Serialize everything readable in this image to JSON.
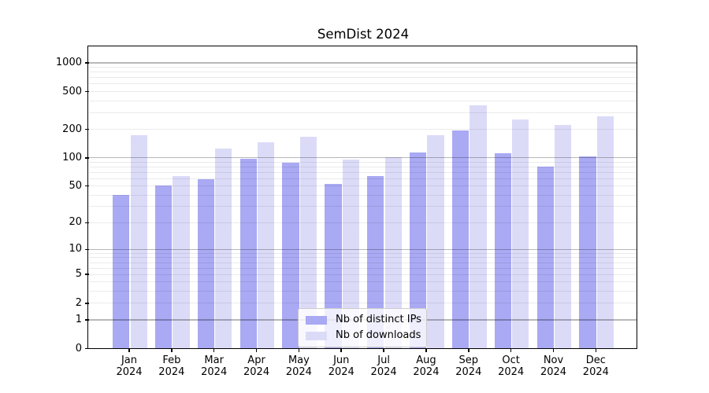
{
  "chart_data": {
    "type": "bar",
    "title": "SemDist 2024",
    "yscale": "symlog (log axis including 0; y = ln(1+v))",
    "grid": true,
    "legend_position": "lower center",
    "months": [
      "Jan",
      "Feb",
      "Mar",
      "Apr",
      "May",
      "Jun",
      "Jul",
      "Aug",
      "Sep",
      "Oct",
      "Nov",
      "Dec"
    ],
    "year": "2024",
    "y_ticks": [
      0,
      1,
      2,
      5,
      10,
      20,
      50,
      100,
      200,
      500,
      1000
    ],
    "ylim": [
      0,
      1450
    ],
    "xlabel": "",
    "ylabel": "",
    "series": [
      {
        "name": "Nb of distinct IPs",
        "color": "#a9a9f4",
        "values": [
          40,
          51,
          59,
          97,
          88,
          53,
          64,
          113,
          193,
          112,
          81,
          103
        ]
      },
      {
        "name": "Nb of downloads",
        "color": "#dbdbf8",
        "values": [
          175,
          64,
          125,
          145,
          168,
          96,
          102,
          175,
          358,
          254,
          222,
          273
        ]
      }
    ]
  },
  "colors": {
    "major_grid": "rgba(0,0,0,0.28)",
    "minor_grid": "rgba(0,0,0,0.08)",
    "spine": "#000000",
    "legend_border": "#cccccc"
  }
}
